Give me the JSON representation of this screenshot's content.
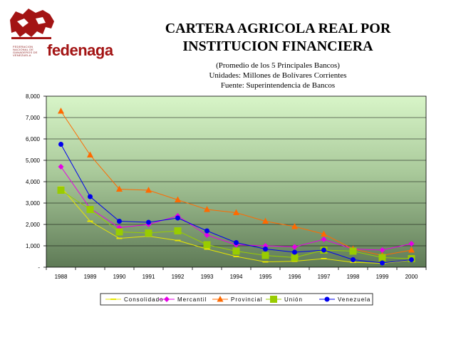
{
  "logo": {
    "name": "fedenaga",
    "small_text": "FEDERACION NACIONAL DE GANADEROS DE VENEZUELA"
  },
  "header": {
    "title_line1": "CARTERA AGRICOLA REAL POR",
    "title_line2": "INSTITUCION FINANCIERA",
    "subtitle_line1": "(Promedio de los 5 Principales Bancos)",
    "subtitle_line2": "Unidades: Millones de Bolívares Corrientes",
    "subtitle_line3": "Fuente: Superintendencia de Bancos"
  },
  "chart_data": {
    "type": "line",
    "title": "CARTERA AGRICOLA REAL POR INSTITUCION FINANCIERA",
    "xlabel": "",
    "ylabel": "",
    "ylim": [
      0,
      8000
    ],
    "ytick_labels": [
      "-",
      "1,000",
      "2,000",
      "3,000",
      "4,000",
      "5,000",
      "6,000",
      "7,000",
      "8,000"
    ],
    "categories": [
      "1988",
      "1989",
      "1990",
      "1991",
      "1992",
      "1993",
      "1994",
      "1995",
      "1996",
      "1997",
      "1998",
      "1999",
      "2000"
    ],
    "legend_position": "bottom",
    "series": [
      {
        "name": "Consolidado",
        "color": "#e6e600",
        "marker": "dash",
        "values": [
          3750,
          2150,
          1350,
          1450,
          1250,
          850,
          500,
          250,
          280,
          400,
          230,
          180,
          330
        ]
      },
      {
        "name": "Mercantil",
        "color": "#e600e6",
        "marker": "diamond",
        "values": [
          4700,
          2750,
          1850,
          2000,
          2400,
          1500,
          1050,
          1000,
          950,
          1300,
          850,
          800,
          1100
        ]
      },
      {
        "name": "Provincial",
        "color": "#ff6a00",
        "marker": "triangle",
        "values": [
          7300,
          5250,
          3650,
          3600,
          3150,
          2700,
          2550,
          2150,
          1900,
          1550,
          850,
          550,
          800
        ]
      },
      {
        "name": "Unión",
        "color": "#99cc00",
        "marker": "square",
        "values": [
          3600,
          2700,
          1650,
          1600,
          1700,
          1050,
          750,
          550,
          450,
          800,
          750,
          450,
          400
        ]
      },
      {
        "name": "Venezuela",
        "color": "#0000ee",
        "marker": "circle",
        "values": [
          5750,
          3300,
          2150,
          2100,
          2300,
          1700,
          1150,
          850,
          700,
          800,
          350,
          200,
          350
        ]
      }
    ]
  }
}
